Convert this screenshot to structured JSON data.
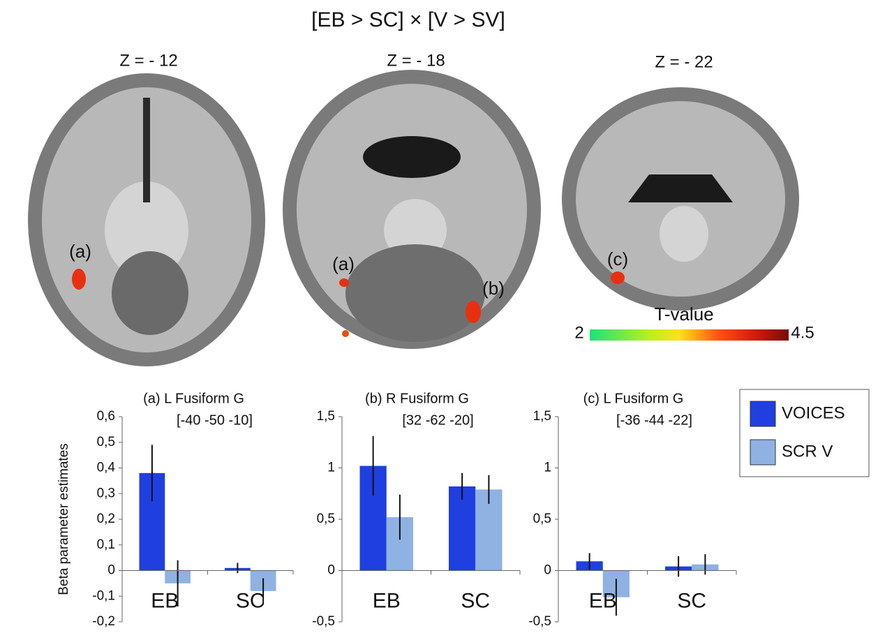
{
  "figure": {
    "title": "[EB > SC] × [V > SV]",
    "slices": [
      {
        "label": "Z = - 12",
        "markers": [
          "(a)"
        ]
      },
      {
        "label": "Z = - 18",
        "markers": [
          "(a)",
          "(b)"
        ]
      },
      {
        "label": "Z = - 22",
        "markers": [
          "(c)"
        ]
      }
    ],
    "colorbar": {
      "label": "T-value",
      "min": 2,
      "max": 4.5
    }
  },
  "chart_data": [
    {
      "type": "bar",
      "title": "(a)  L Fusiform G",
      "subtitle": "[-40 -50 -10]",
      "y_label": "Beta parameter estimates",
      "categories": [
        "EB",
        "SC"
      ],
      "series": [
        {
          "name": "VOICES",
          "color": "#1f3fe0",
          "values": [
            0.38,
            0.01
          ],
          "errors": [
            0.11,
            0.02
          ]
        },
        {
          "name": "SCR V",
          "color": "#8fb2e2",
          "values": [
            -0.05,
            -0.08
          ],
          "errors": [
            0.09,
            0.05
          ]
        }
      ],
      "ylim": [
        -0.2,
        0.6
      ],
      "yticks": [
        {
          "value": -0.2,
          "label": "-0,2"
        },
        {
          "value": -0.1,
          "label": "-0,1"
        },
        0,
        {
          "value": 0.1,
          "label": "0,1"
        },
        {
          "value": 0.2,
          "label": "0,2"
        },
        {
          "value": 0.3,
          "label": "0,3"
        },
        {
          "value": 0.4,
          "label": "0,4"
        },
        {
          "value": 0.5,
          "label": "0,5"
        },
        {
          "value": 0.6,
          "label": "0,6"
        }
      ]
    },
    {
      "type": "bar",
      "title": "(b)  R Fusiform G",
      "subtitle": "[32 -62 -20]",
      "categories": [
        "EB",
        "SC"
      ],
      "series": [
        {
          "color": "#1f3fe0",
          "values": [
            1.02,
            0.82
          ],
          "errors": [
            0.29,
            0.13
          ]
        },
        {
          "color": "#8fb2e2",
          "values": [
            0.52,
            0.79
          ],
          "errors": [
            0.22,
            0.14
          ]
        }
      ],
      "ylim": [
        -0.5,
        1.5
      ],
      "yticks": [
        {
          "value": -0.5,
          "label": "-0,5"
        },
        0,
        {
          "value": 0.5,
          "label": "0,5"
        },
        1,
        {
          "value": 1.5,
          "label": "1,5"
        }
      ]
    },
    {
      "type": "bar",
      "title": "(c)  L Fusiform G",
      "subtitle": "[-36 -44 -22]",
      "categories": [
        "EB",
        "SC"
      ],
      "series": [
        {
          "color": "#1f3fe0",
          "values": [
            0.09,
            0.04
          ],
          "errors": [
            0.08,
            0.1
          ]
        },
        {
          "color": "#8fb2e2",
          "values": [
            -0.26,
            0.06
          ],
          "errors": [
            0.18,
            0.1
          ]
        }
      ],
      "ylim": [
        -0.5,
        1.5
      ],
      "yticks": [
        {
          "value": -0.5,
          "label": "-0,5"
        },
        0,
        {
          "value": 0.5,
          "label": "0,5"
        },
        1,
        {
          "value": 1.5,
          "label": "1,5"
        }
      ]
    }
  ]
}
